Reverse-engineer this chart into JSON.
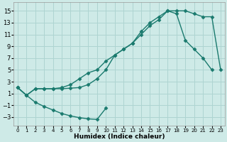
{
  "bg_color": "#ceeae7",
  "grid_color": "#aed4d1",
  "line_color": "#1a7a6e",
  "marker": "D",
  "markersize": 2.5,
  "linewidth": 1.0,
  "xlabel": "Humidex (Indice chaleur)",
  "xlabel_fontsize": 6.5,
  "ytick_fontsize": 6,
  "xtick_fontsize": 5,
  "xlim": [
    -0.5,
    23.5
  ],
  "ylim": [
    -4.5,
    16.5
  ],
  "yticks": [
    -3,
    -1,
    1,
    3,
    5,
    7,
    9,
    11,
    13,
    15
  ],
  "xticks": [
    0,
    1,
    2,
    3,
    4,
    5,
    6,
    7,
    8,
    9,
    10,
    11,
    12,
    13,
    14,
    15,
    16,
    17,
    18,
    19,
    20,
    21,
    22,
    23
  ],
  "c1x": [
    0,
    1,
    2,
    3,
    4,
    5,
    6,
    7,
    8,
    9,
    10,
    11,
    12,
    13,
    14,
    15,
    16,
    17,
    18,
    19,
    20,
    21,
    22,
    23
  ],
  "c1y": [
    2,
    0.7,
    1.8,
    1.8,
    1.8,
    1.8,
    1.9,
    2.0,
    2.5,
    3.5,
    5.0,
    7.5,
    8.5,
    9.5,
    11.5,
    13.0,
    14.0,
    15.0,
    15.0,
    15.0,
    14.5,
    14.0,
    14.0,
    5.0
  ],
  "c2x": [
    0,
    1,
    2,
    3,
    4,
    5,
    6,
    7,
    8,
    9,
    10
  ],
  "c2y": [
    2,
    0.7,
    -0.5,
    -1.2,
    -1.8,
    -2.4,
    -2.8,
    -3.1,
    -3.3,
    -3.4,
    -1.5
  ],
  "c3x": [
    0,
    1,
    2,
    3,
    4,
    5,
    6,
    7,
    8,
    9,
    10,
    11,
    12,
    13,
    14,
    15,
    16,
    17,
    18,
    19,
    20,
    21,
    22
  ],
  "c3y": [
    2,
    0.7,
    1.8,
    1.8,
    1.8,
    2.0,
    2.5,
    3.5,
    4.5,
    5.0,
    6.5,
    7.5,
    8.5,
    9.5,
    11.0,
    12.5,
    13.5,
    15.0,
    14.5,
    10.0,
    8.5,
    7.0,
    5.0
  ]
}
